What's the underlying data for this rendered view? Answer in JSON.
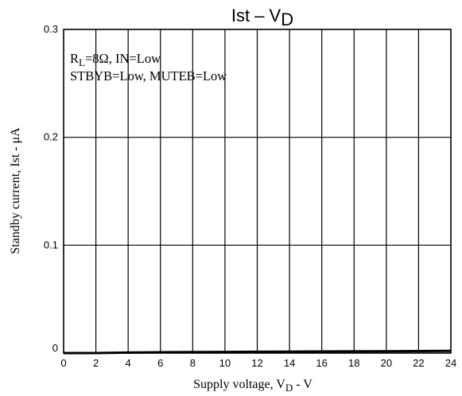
{
  "chart_data": {
    "type": "line",
    "title": {
      "main": "Ist  –  V",
      "sub": "D"
    },
    "xlabel": {
      "main": "Supply voltage, V",
      "sub": "D",
      "suffix": " - V"
    },
    "ylabel": "Standby current, Ist - μA",
    "xlim": [
      0,
      24
    ],
    "ylim": [
      0,
      0.3
    ],
    "xticks": [
      "0",
      "2",
      "4",
      "6",
      "8",
      "10",
      "12",
      "14",
      "16",
      "18",
      "20",
      "22",
      "24"
    ],
    "yticks": [
      {
        "value": 0,
        "label": "0"
      },
      {
        "value": 0.1,
        "label": "0.1"
      },
      {
        "value": 0.2,
        "label": "0.2"
      },
      {
        "value": 0.3,
        "label": "0.3"
      }
    ],
    "grid": true,
    "annotation": {
      "line1": {
        "prefix": "R",
        "sub": "L",
        "suffix": "=8Ω, IN=Low"
      },
      "line2": "STBYB=Low, MUTEB=Low"
    },
    "series": [
      {
        "x": [
          0,
          2,
          4,
          6,
          8,
          10,
          12,
          14,
          16,
          18,
          20,
          22,
          24
        ],
        "y": [
          0.0,
          0.0,
          0.0005,
          0.0007,
          0.0009,
          0.001,
          0.0012,
          0.0013,
          0.0015,
          0.0016,
          0.0017,
          0.0018,
          0.002
        ],
        "color": "#000000"
      }
    ]
  }
}
